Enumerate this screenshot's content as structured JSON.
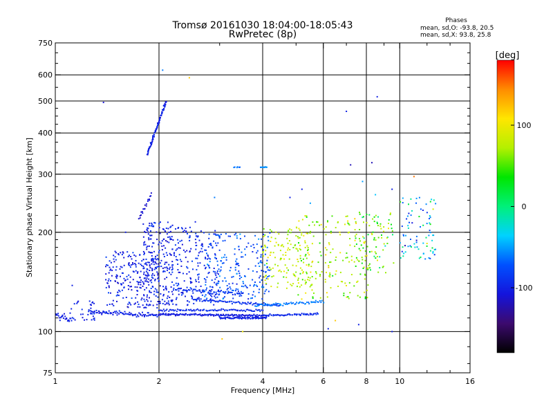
{
  "chart_data": {
    "type": "scatter",
    "title": "Tromsø 20161030 18:04:00-18:05:43",
    "subtitle": "RwPretec (8p)",
    "xlabel": "Frequency [MHz]",
    "ylabel": "Stationary phase Virtual Height [km]",
    "x_scale": "log",
    "y_scale": "log",
    "xlim": [
      1,
      16
    ],
    "ylim": [
      75,
      750
    ],
    "x_ticks": [
      1,
      2,
      4,
      6,
      8,
      10,
      16
    ],
    "x_tick_labels": [
      "1",
      "2",
      "4",
      "6",
      "8",
      "10",
      "16"
    ],
    "y_ticks": [
      75,
      100,
      200,
      300,
      400,
      500,
      600,
      750
    ],
    "y_tick_labels": [
      "75",
      "100",
      "200",
      "300",
      "400",
      "500",
      "600",
      "750"
    ],
    "grid_x": [
      2,
      4,
      6,
      8,
      10
    ],
    "grid_y": [
      100,
      200,
      300,
      400,
      500,
      600
    ],
    "grid": true,
    "phases": {
      "heading": "Phases",
      "line_o": "mean, sd,O: -93.8, 20.5",
      "line_x": "mean, sd,X:  93.8, 25.8"
    },
    "colorbar": {
      "label": "[deg]",
      "range": [
        -180,
        180
      ],
      "ticks": [
        100,
        0,
        -100
      ],
      "tick_labels": [
        "100",
        "0",
        "-100"
      ],
      "colors": [
        "#000000",
        "#3c0a6e",
        "#1414dc",
        "#0050ff",
        "#00d2ff",
        "#00f07a",
        "#00e600",
        "#b4f000",
        "#ffe600",
        "#ff8c00",
        "#ff0000"
      ]
    },
    "series": [
      {
        "traces": [
          {
            "x0": 1.0,
            "x1": 1.12,
            "y0": 112,
            "y1": 108,
            "n": 26,
            "jitter": 0.04,
            "phase": -100
          },
          {
            "x0": 1.25,
            "x1": 2.0,
            "y0": 115,
            "y1": 112,
            "n": 90,
            "jitter": 0.02,
            "phase": -100
          },
          {
            "x0": 2.0,
            "x1": 4.0,
            "y0": 113,
            "y1": 112,
            "n": 130,
            "jitter": 0.012,
            "phase": -105
          },
          {
            "x0": 2.0,
            "x1": 4.0,
            "y0": 116,
            "y1": 116,
            "n": 90,
            "jitter": 0.012,
            "phase": -95
          },
          {
            "x0": 3.0,
            "x1": 4.1,
            "y0": 110,
            "y1": 110,
            "n": 70,
            "jitter": 0.01,
            "phase": -100
          },
          {
            "x0": 4.0,
            "x1": 5.8,
            "y0": 112,
            "y1": 113,
            "n": 60,
            "jitter": 0.01,
            "phase": -95
          },
          {
            "x0": 2.5,
            "x1": 4.5,
            "y0": 125,
            "y1": 120,
            "n": 80,
            "jitter": 0.012,
            "phase": -90
          },
          {
            "x0": 3.8,
            "x1": 6.0,
            "y0": 120,
            "y1": 123,
            "n": 60,
            "jitter": 0.015,
            "phase": -60
          },
          {
            "x0": 2.2,
            "x1": 3.5,
            "y0": 135,
            "y1": 130,
            "n": 60,
            "jitter": 0.02,
            "phase": -90
          },
          {
            "x0": 1.85,
            "x1": 2.1,
            "y0": 345,
            "y1": 500,
            "n": 90,
            "jitter": 0.015,
            "phase": -100
          },
          {
            "x0": 1.75,
            "x1": 1.9,
            "y0": 220,
            "y1": 260,
            "n": 20,
            "jitter": 0.02,
            "phase": -110
          },
          {
            "x0": 3.95,
            "x1": 4.1,
            "y0": 315,
            "y1": 315,
            "n": 12,
            "jitter": 0.004,
            "phase": -55
          },
          {
            "x0": 3.3,
            "x1": 3.45,
            "y0": 315,
            "y1": 315,
            "n": 6,
            "jitter": 0.004,
            "phase": -60
          }
        ],
        "clouds": [
          {
            "x0": 1.4,
            "x1": 2.0,
            "y0": 118,
            "y1": 175,
            "n": 240,
            "phase": -100,
            "spread": 30
          },
          {
            "x0": 1.8,
            "x1": 2.2,
            "y0": 120,
            "y1": 215,
            "n": 180,
            "phase": -100,
            "spread": 25
          },
          {
            "x0": 2.1,
            "x1": 3.0,
            "y0": 120,
            "y1": 210,
            "n": 220,
            "phase": -95,
            "spread": 30
          },
          {
            "x0": 2.7,
            "x1": 4.2,
            "y0": 125,
            "y1": 200,
            "n": 220,
            "phase": -75,
            "spread": 40
          },
          {
            "x0": 4.0,
            "x1": 5.6,
            "y0": 135,
            "y1": 205,
            "n": 150,
            "phase": 80,
            "spread": 50
          },
          {
            "x0": 5.0,
            "x1": 8.2,
            "y0": 125,
            "y1": 225,
            "n": 170,
            "phase": 70,
            "spread": 60
          },
          {
            "x0": 7.6,
            "x1": 9.6,
            "y0": 150,
            "y1": 230,
            "n": 80,
            "phase": 50,
            "spread": 80
          },
          {
            "x0": 10.0,
            "x1": 12.8,
            "y0": 165,
            "y1": 255,
            "n": 80,
            "phase": -40,
            "spread": 120
          },
          {
            "x0": 1.1,
            "x1": 1.3,
            "y0": 108,
            "y1": 125,
            "n": 30,
            "phase": -100,
            "spread": 15
          }
        ],
        "points": [
          {
            "x": 1.38,
            "y": 495,
            "phase": -110
          },
          {
            "x": 1.12,
            "y": 138,
            "phase": -100
          },
          {
            "x": 1.6,
            "y": 200,
            "phase": -100
          },
          {
            "x": 2.05,
            "y": 620,
            "phase": -60
          },
          {
            "x": 2.45,
            "y": 588,
            "phase": 120
          },
          {
            "x": 2.55,
            "y": 215,
            "phase": -100
          },
          {
            "x": 2.9,
            "y": 255,
            "phase": -60
          },
          {
            "x": 3.05,
            "y": 95,
            "phase": 120
          },
          {
            "x": 3.5,
            "y": 100,
            "phase": 100
          },
          {
            "x": 7.0,
            "y": 465,
            "phase": -100
          },
          {
            "x": 8.6,
            "y": 515,
            "phase": -100
          },
          {
            "x": 7.2,
            "y": 320,
            "phase": -120
          },
          {
            "x": 8.3,
            "y": 325,
            "phase": -120
          },
          {
            "x": 7.8,
            "y": 285,
            "phase": -50
          },
          {
            "x": 8.5,
            "y": 260,
            "phase": -40
          },
          {
            "x": 9.5,
            "y": 270,
            "phase": -100
          },
          {
            "x": 11.0,
            "y": 295,
            "phase": 150
          },
          {
            "x": 5.5,
            "y": 245,
            "phase": -50
          },
          {
            "x": 5.2,
            "y": 270,
            "phase": -100
          },
          {
            "x": 4.8,
            "y": 255,
            "phase": -100
          },
          {
            "x": 6.2,
            "y": 102,
            "phase": -100
          },
          {
            "x": 7.6,
            "y": 105,
            "phase": -100
          },
          {
            "x": 9.5,
            "y": 100,
            "phase": -100
          },
          {
            "x": 6.5,
            "y": 108,
            "phase": 120
          },
          {
            "x": 12.5,
            "y": 235,
            "phase": 90
          },
          {
            "x": 12.0,
            "y": 185,
            "phase": 100
          }
        ]
      }
    ]
  }
}
